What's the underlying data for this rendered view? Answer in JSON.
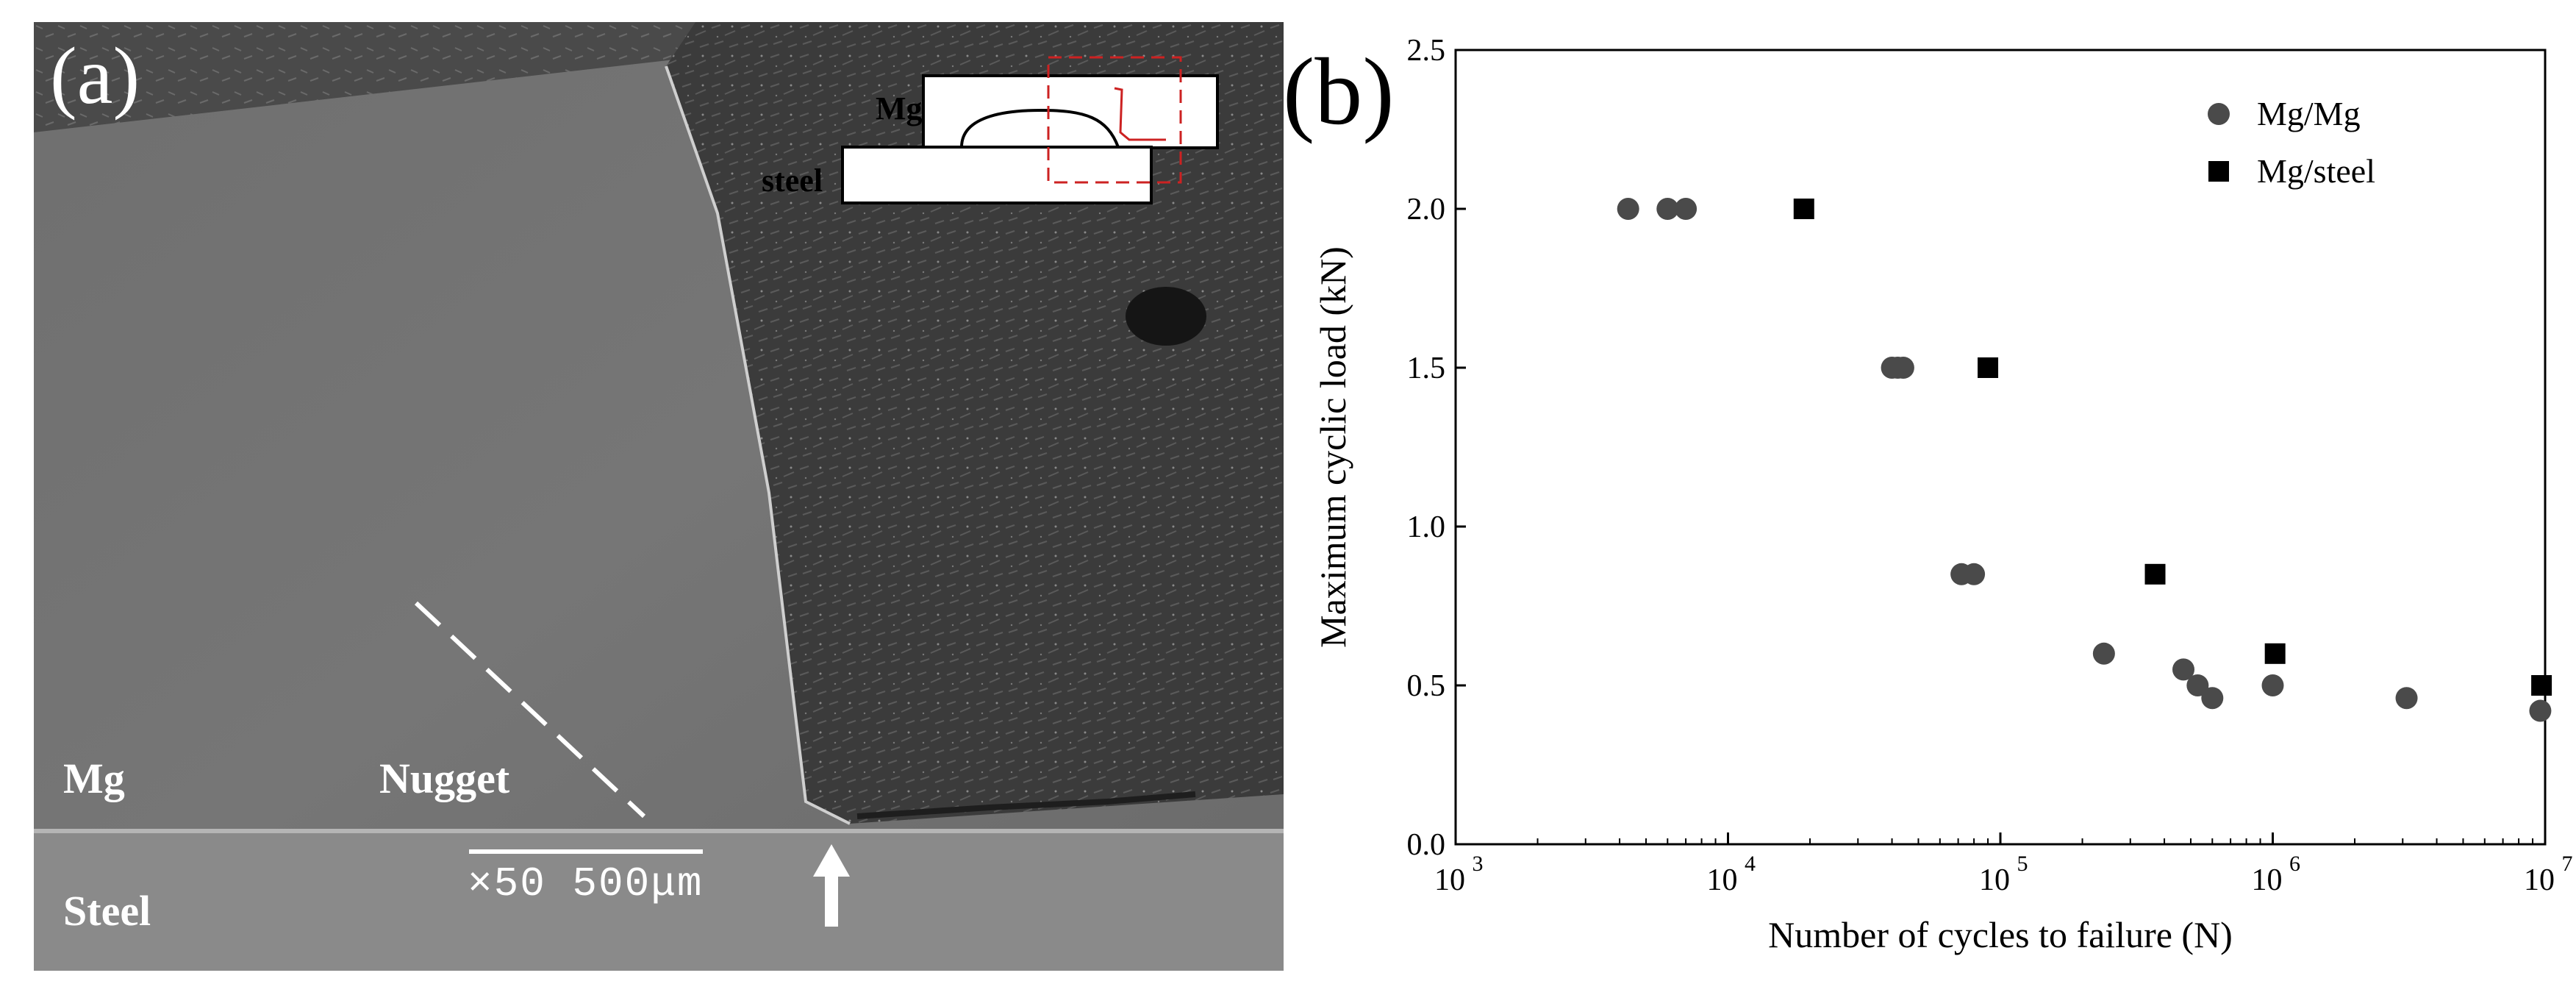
{
  "panel_a": {
    "label": "(a)",
    "mg_label": "Mg",
    "nugget_label": "Nugget",
    "steel_label": "Steel",
    "scale_bar_text": "×50  500μm",
    "inset": {
      "mg_label": "Mg",
      "steel_label": "steel"
    }
  },
  "panel_b": {
    "label": "(b)"
  },
  "chart_data": {
    "type": "scatter",
    "title": "",
    "xlabel": "Number of cycles to failure (N)",
    "ylabel": "Maximum cyclic load  (kN)",
    "xscale": "log",
    "xlim": [
      1000,
      10000000
    ],
    "ylim": [
      0,
      2.5
    ],
    "x_ticks": [
      {
        "label": "10",
        "exp": "3"
      },
      {
        "label": "10",
        "exp": "4"
      },
      {
        "label": "10",
        "exp": "5"
      },
      {
        "label": "10",
        "exp": "6"
      },
      {
        "label": "10",
        "exp": "7"
      }
    ],
    "y_ticks": [
      "0.0",
      "0.5",
      "1.0",
      "1.5",
      "2.0",
      "2.5"
    ],
    "legend_position": "top-right",
    "series": [
      {
        "name": "Mg/Mg",
        "marker": "circle",
        "color": "#4a4a4a",
        "points": [
          [
            4300,
            2.0
          ],
          [
            6000,
            2.0
          ],
          [
            7000,
            2.0
          ],
          [
            40000,
            1.5
          ],
          [
            42000,
            1.5
          ],
          [
            44000,
            1.5
          ],
          [
            72000,
            0.85
          ],
          [
            80000,
            0.85
          ],
          [
            240000,
            0.6
          ],
          [
            470000,
            0.55
          ],
          [
            530000,
            0.5
          ],
          [
            600000,
            0.46
          ],
          [
            1000000,
            0.5
          ],
          [
            3100000,
            0.46
          ],
          [
            9600000,
            0.42
          ]
        ]
      },
      {
        "name": "Mg/steel",
        "marker": "square",
        "color": "#000000",
        "points": [
          [
            19000,
            2.0
          ],
          [
            90000,
            1.5
          ],
          [
            370000,
            0.85
          ],
          [
            1020000,
            0.6
          ],
          [
            9700000,
            0.5
          ]
        ]
      }
    ]
  }
}
